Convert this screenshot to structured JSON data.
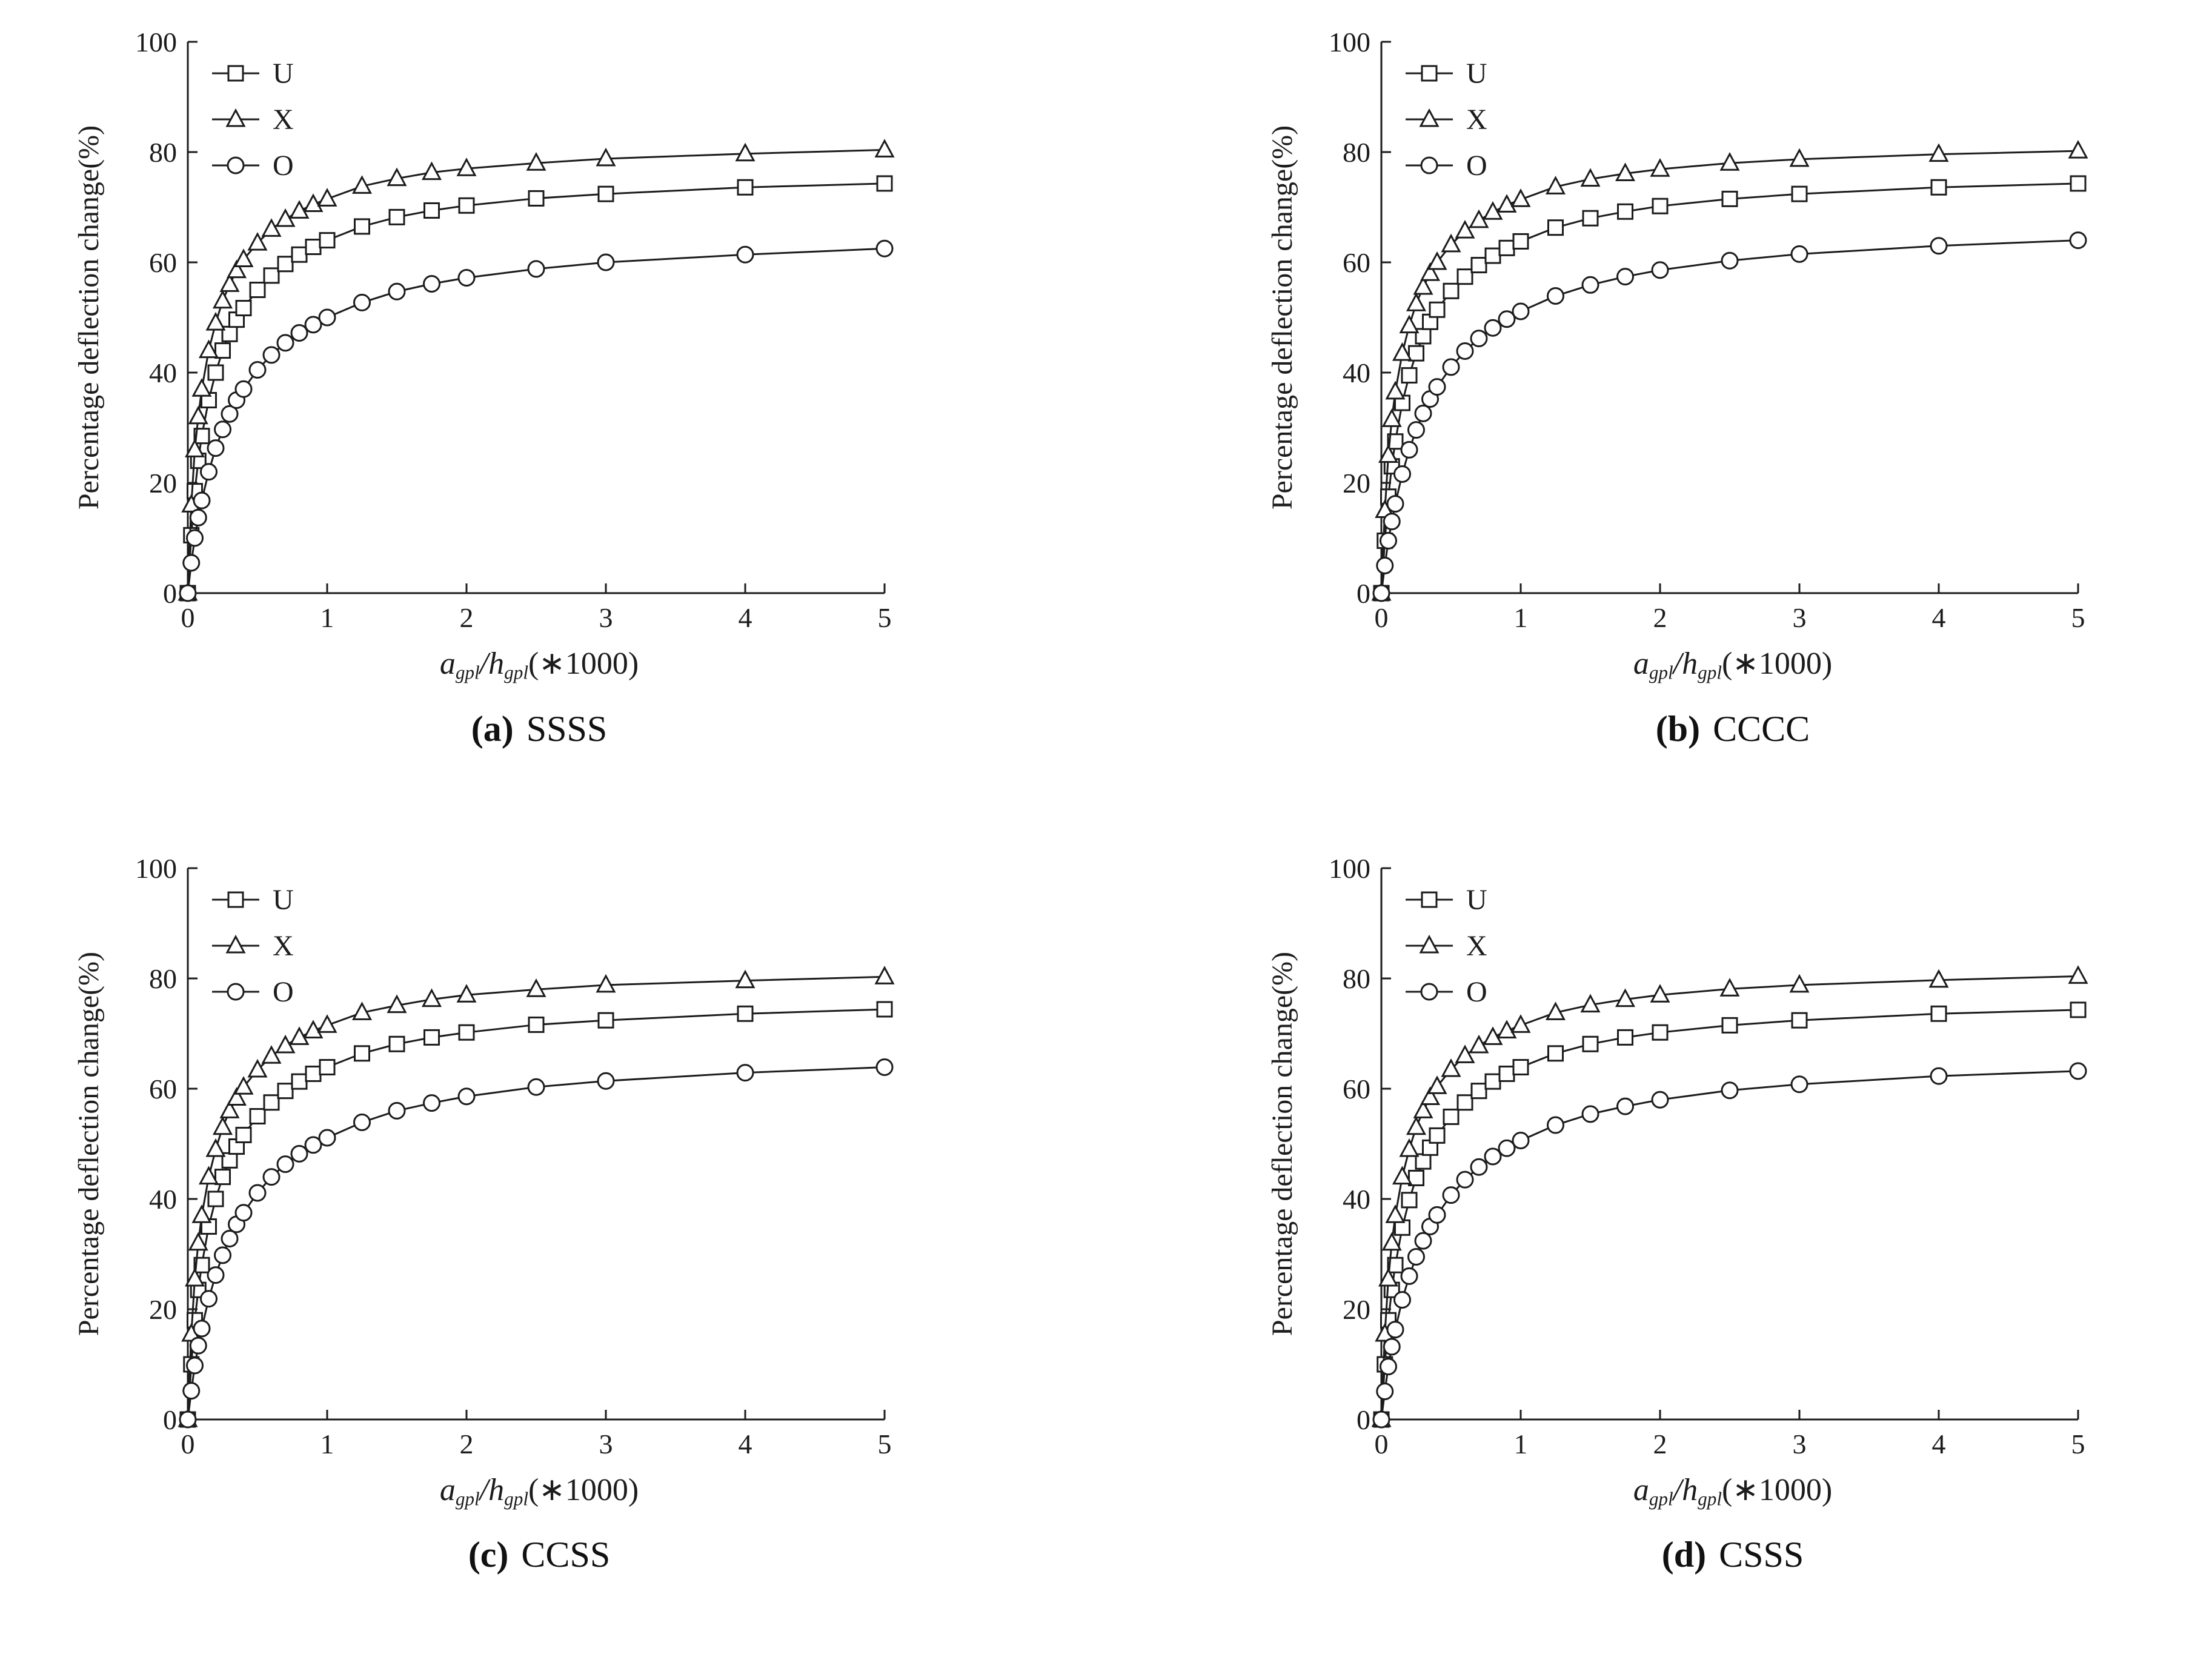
{
  "page": {
    "background": "#ffffff",
    "ink": "#1c1c1c"
  },
  "shared": {
    "ylabel": "Percentage deflection change(%)",
    "xlabel_parts": [
      {
        "text": "a",
        "style": "italic"
      },
      {
        "text": "gpl",
        "style": "sub"
      },
      {
        "text": "/",
        "style": "italic"
      },
      {
        "text": "h",
        "style": "italic"
      },
      {
        "text": "gpl",
        "style": "sub"
      },
      {
        "text": "(∗1000)",
        "style": "plain"
      }
    ],
    "xlim": [
      0,
      5
    ],
    "ylim": [
      0,
      100
    ],
    "x_ticks": [
      0,
      1,
      2,
      3,
      4,
      5
    ],
    "y_ticks": [
      0,
      20,
      40,
      60,
      80,
      100
    ],
    "grid": false,
    "legend_position": "top-left"
  },
  "chart_data": [
    {
      "id": "a",
      "type": "line",
      "caption_bold": "(a)",
      "caption_label": "SSSS",
      "x": [
        0,
        0.025,
        0.05,
        0.075,
        0.1,
        0.15,
        0.2,
        0.25,
        0.3,
        0.35,
        0.4,
        0.5,
        0.6,
        0.7,
        0.8,
        0.9,
        1,
        1.25,
        1.5,
        1.75,
        2,
        2.5,
        3,
        4,
        5
      ],
      "series": [
        {
          "name": "U",
          "marker": "square",
          "values": [
            0,
            10.5,
            18.5,
            24,
            28.5,
            35,
            40,
            44,
            47,
            49.6,
            51.7,
            55,
            57.6,
            59.7,
            61.4,
            62.8,
            64,
            66.5,
            68.2,
            69.4,
            70.3,
            71.6,
            72.4,
            73.6,
            74.3
          ]
        },
        {
          "name": "X",
          "marker": "triangle",
          "values": [
            0,
            16,
            26,
            32,
            37,
            44,
            49,
            53,
            56,
            58.5,
            60.5,
            63.5,
            66,
            67.8,
            69.3,
            70.5,
            71.5,
            73.8,
            75.2,
            76.3,
            77,
            78,
            78.8,
            79.7,
            80.4
          ]
        },
        {
          "name": "O",
          "marker": "circle",
          "values": [
            0,
            5.5,
            10,
            13.7,
            16.8,
            22,
            26.3,
            29.7,
            32.5,
            35,
            37,
            40.5,
            43.2,
            45.4,
            47.2,
            48.7,
            50,
            52.7,
            54.7,
            56.1,
            57.2,
            58.8,
            60,
            61.4,
            62.5
          ]
        }
      ]
    },
    {
      "id": "b",
      "type": "line",
      "caption_bold": "(b)",
      "caption_label": "CCCC",
      "x": [
        0,
        0.025,
        0.05,
        0.075,
        0.1,
        0.15,
        0.2,
        0.25,
        0.3,
        0.35,
        0.4,
        0.5,
        0.6,
        0.7,
        0.8,
        0.9,
        1,
        1.25,
        1.5,
        1.75,
        2,
        2.5,
        3,
        4,
        5
      ],
      "series": [
        {
          "name": "U",
          "marker": "square",
          "values": [
            0,
            9.5,
            17.5,
            23,
            27.5,
            34.5,
            39.5,
            43.5,
            46.6,
            49.2,
            51.4,
            54.8,
            57.4,
            59.5,
            61.2,
            62.6,
            63.8,
            66.3,
            68,
            69.2,
            70.2,
            71.5,
            72.4,
            73.6,
            74.3
          ]
        },
        {
          "name": "X",
          "marker": "triangle",
          "values": [
            0,
            15,
            25,
            31.5,
            36.5,
            43.5,
            48.5,
            52.5,
            55.5,
            58,
            60,
            63.2,
            65.7,
            67.6,
            69.1,
            70.4,
            71.4,
            73.7,
            75.1,
            76.1,
            76.9,
            78,
            78.7,
            79.6,
            80.2
          ]
        },
        {
          "name": "O",
          "marker": "circle",
          "values": [
            0,
            5,
            9.5,
            13,
            16.2,
            21.6,
            26,
            29.6,
            32.6,
            35.2,
            37.4,
            41,
            43.9,
            46.2,
            48.1,
            49.7,
            51.1,
            53.9,
            55.9,
            57.4,
            58.6,
            60.3,
            61.5,
            63,
            64
          ]
        }
      ]
    },
    {
      "id": "c",
      "type": "line",
      "caption_bold": "(c)",
      "caption_label": "CCSS",
      "x": [
        0,
        0.025,
        0.05,
        0.075,
        0.1,
        0.15,
        0.2,
        0.25,
        0.3,
        0.35,
        0.4,
        0.5,
        0.6,
        0.7,
        0.8,
        0.9,
        1,
        1.25,
        1.5,
        1.75,
        2,
        2.5,
        3,
        4,
        5
      ],
      "series": [
        {
          "name": "U",
          "marker": "square",
          "values": [
            0,
            10,
            18,
            23.5,
            28,
            35,
            40,
            44,
            47,
            49.5,
            51.6,
            55,
            57.5,
            59.6,
            61.3,
            62.7,
            63.9,
            66.4,
            68.1,
            69.3,
            70.2,
            71.6,
            72.4,
            73.6,
            74.4
          ]
        },
        {
          "name": "X",
          "marker": "triangle",
          "values": [
            0,
            15.5,
            25.5,
            32,
            37,
            44,
            49,
            53,
            56,
            58.3,
            60.3,
            63.4,
            65.9,
            67.8,
            69.3,
            70.5,
            71.5,
            73.8,
            75.1,
            76.2,
            77,
            78,
            78.8,
            79.6,
            80.3
          ]
        },
        {
          "name": "O",
          "marker": "circle",
          "values": [
            0,
            5.2,
            9.8,
            13.4,
            16.5,
            21.9,
            26.2,
            29.8,
            32.8,
            35.4,
            37.5,
            41.1,
            44,
            46.3,
            48.2,
            49.8,
            51.1,
            53.9,
            56,
            57.4,
            58.6,
            60.3,
            61.4,
            62.9,
            63.9
          ]
        }
      ]
    },
    {
      "id": "d",
      "type": "line",
      "caption_bold": "(d)",
      "caption_label": "CSSS",
      "x": [
        0,
        0.025,
        0.05,
        0.075,
        0.1,
        0.15,
        0.2,
        0.25,
        0.3,
        0.35,
        0.4,
        0.5,
        0.6,
        0.7,
        0.8,
        0.9,
        1,
        1.25,
        1.5,
        1.75,
        2,
        2.5,
        3,
        4,
        5
      ],
      "series": [
        {
          "name": "U",
          "marker": "square",
          "values": [
            0,
            10,
            18,
            23.5,
            28,
            34.8,
            39.8,
            43.8,
            46.8,
            49.3,
            51.5,
            54.9,
            57.5,
            59.6,
            61.3,
            62.7,
            63.9,
            66.4,
            68.1,
            69.3,
            70.2,
            71.5,
            72.4,
            73.6,
            74.3
          ]
        },
        {
          "name": "X",
          "marker": "triangle",
          "values": [
            0,
            15.5,
            25.5,
            32,
            37,
            44,
            49,
            53,
            56,
            58.4,
            60.4,
            63.5,
            66,
            67.8,
            69.3,
            70.5,
            71.5,
            73.8,
            75.2,
            76.2,
            77,
            78.1,
            78.8,
            79.7,
            80.4
          ]
        },
        {
          "name": "O",
          "marker": "circle",
          "values": [
            0,
            5.1,
            9.6,
            13.2,
            16.3,
            21.7,
            26,
            29.5,
            32.4,
            35,
            37.1,
            40.7,
            43.5,
            45.8,
            47.7,
            49.2,
            50.6,
            53.4,
            55.4,
            56.8,
            58,
            59.7,
            60.8,
            62.3,
            63.2
          ]
        }
      ]
    }
  ]
}
